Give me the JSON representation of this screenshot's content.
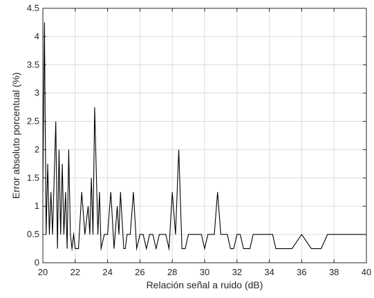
{
  "chart_data": {
    "type": "line",
    "title": "",
    "xlabel": "Relación señal a ruido (dB)",
    "ylabel": "Error absoluto porcentual (%)",
    "xlim": [
      20,
      40
    ],
    "ylim": [
      0,
      4.5
    ],
    "grid": true,
    "x_ticks": [
      20,
      22,
      24,
      26,
      28,
      30,
      32,
      34,
      36,
      38,
      40
    ],
    "y_ticks": [
      0,
      0.5,
      1,
      1.5,
      2,
      2.5,
      3,
      3.5,
      4,
      4.5
    ],
    "x_tick_labels": [
      "20",
      "22",
      "24",
      "26",
      "28",
      "30",
      "32",
      "34",
      "36",
      "38",
      "40"
    ],
    "y_tick_labels": [
      "0",
      "0.5",
      "1",
      "1.5",
      "2",
      "2.5",
      "3",
      "3.5",
      "4",
      "4.5"
    ],
    "line_color": "#000000",
    "grid_color": "#dcdcdc",
    "series": [
      {
        "x": [
          20.0,
          20.1,
          20.2,
          20.3,
          20.4,
          20.5,
          20.6,
          20.7,
          20.8,
          20.9,
          21.0,
          21.1,
          21.2,
          21.3,
          21.4,
          21.5,
          21.6,
          21.7,
          21.8,
          21.9,
          22.0,
          22.1,
          22.2,
          22.4,
          22.6,
          22.8,
          22.9,
          23.0,
          23.1,
          23.2,
          23.4,
          23.5,
          23.6,
          23.8,
          24.0,
          24.2,
          24.4,
          24.6,
          24.7,
          24.8,
          25.0,
          25.1,
          25.2,
          25.4,
          25.6,
          25.8,
          26.0,
          26.2,
          26.4,
          26.6,
          26.8,
          27.0,
          27.2,
          27.4,
          27.6,
          27.8,
          28.0,
          28.2,
          28.4,
          28.6,
          28.8,
          29.0,
          29.2,
          29.4,
          29.6,
          29.8,
          30.0,
          30.2,
          30.4,
          30.6,
          30.8,
          31.0,
          31.2,
          31.4,
          31.6,
          31.8,
          32.0,
          32.2,
          32.4,
          32.6,
          32.8,
          33.0,
          33.2,
          33.4,
          33.6,
          33.8,
          34.0,
          34.2,
          34.4,
          34.6,
          34.8,
          35.0,
          35.4,
          36.0,
          36.6,
          37.2,
          37.6,
          38.0,
          38.6,
          39.2,
          40.0
        ],
        "y": [
          1.25,
          4.25,
          0.5,
          1.75,
          0.5,
          1.25,
          0.5,
          1.5,
          2.5,
          0.25,
          2.0,
          0.5,
          1.75,
          0.5,
          1.25,
          0.25,
          2.0,
          0.5,
          0.25,
          0.5,
          0.25,
          0.25,
          0.25,
          1.25,
          0.5,
          1.0,
          0.5,
          1.5,
          0.5,
          2.75,
          0.5,
          1.25,
          0.25,
          0.5,
          0.5,
          1.25,
          0.25,
          1.0,
          0.5,
          1.25,
          0.25,
          0.25,
          0.5,
          0.5,
          1.25,
          0.25,
          0.5,
          0.5,
          0.25,
          0.5,
          0.5,
          0.25,
          0.5,
          0.5,
          0.5,
          0.25,
          1.25,
          0.5,
          2.0,
          0.25,
          0.25,
          0.5,
          0.5,
          0.5,
          0.5,
          0.5,
          0.25,
          0.5,
          0.5,
          0.5,
          1.25,
          0.5,
          0.5,
          0.5,
          0.25,
          0.25,
          0.5,
          0.5,
          0.25,
          0.25,
          0.25,
          0.5,
          0.5,
          0.5,
          0.5,
          0.5,
          0.5,
          0.5,
          0.25,
          0.25,
          0.25,
          0.25,
          0.25,
          0.5,
          0.25,
          0.25,
          0.5,
          0.5,
          0.5,
          0.5,
          0.5
        ]
      }
    ]
  }
}
